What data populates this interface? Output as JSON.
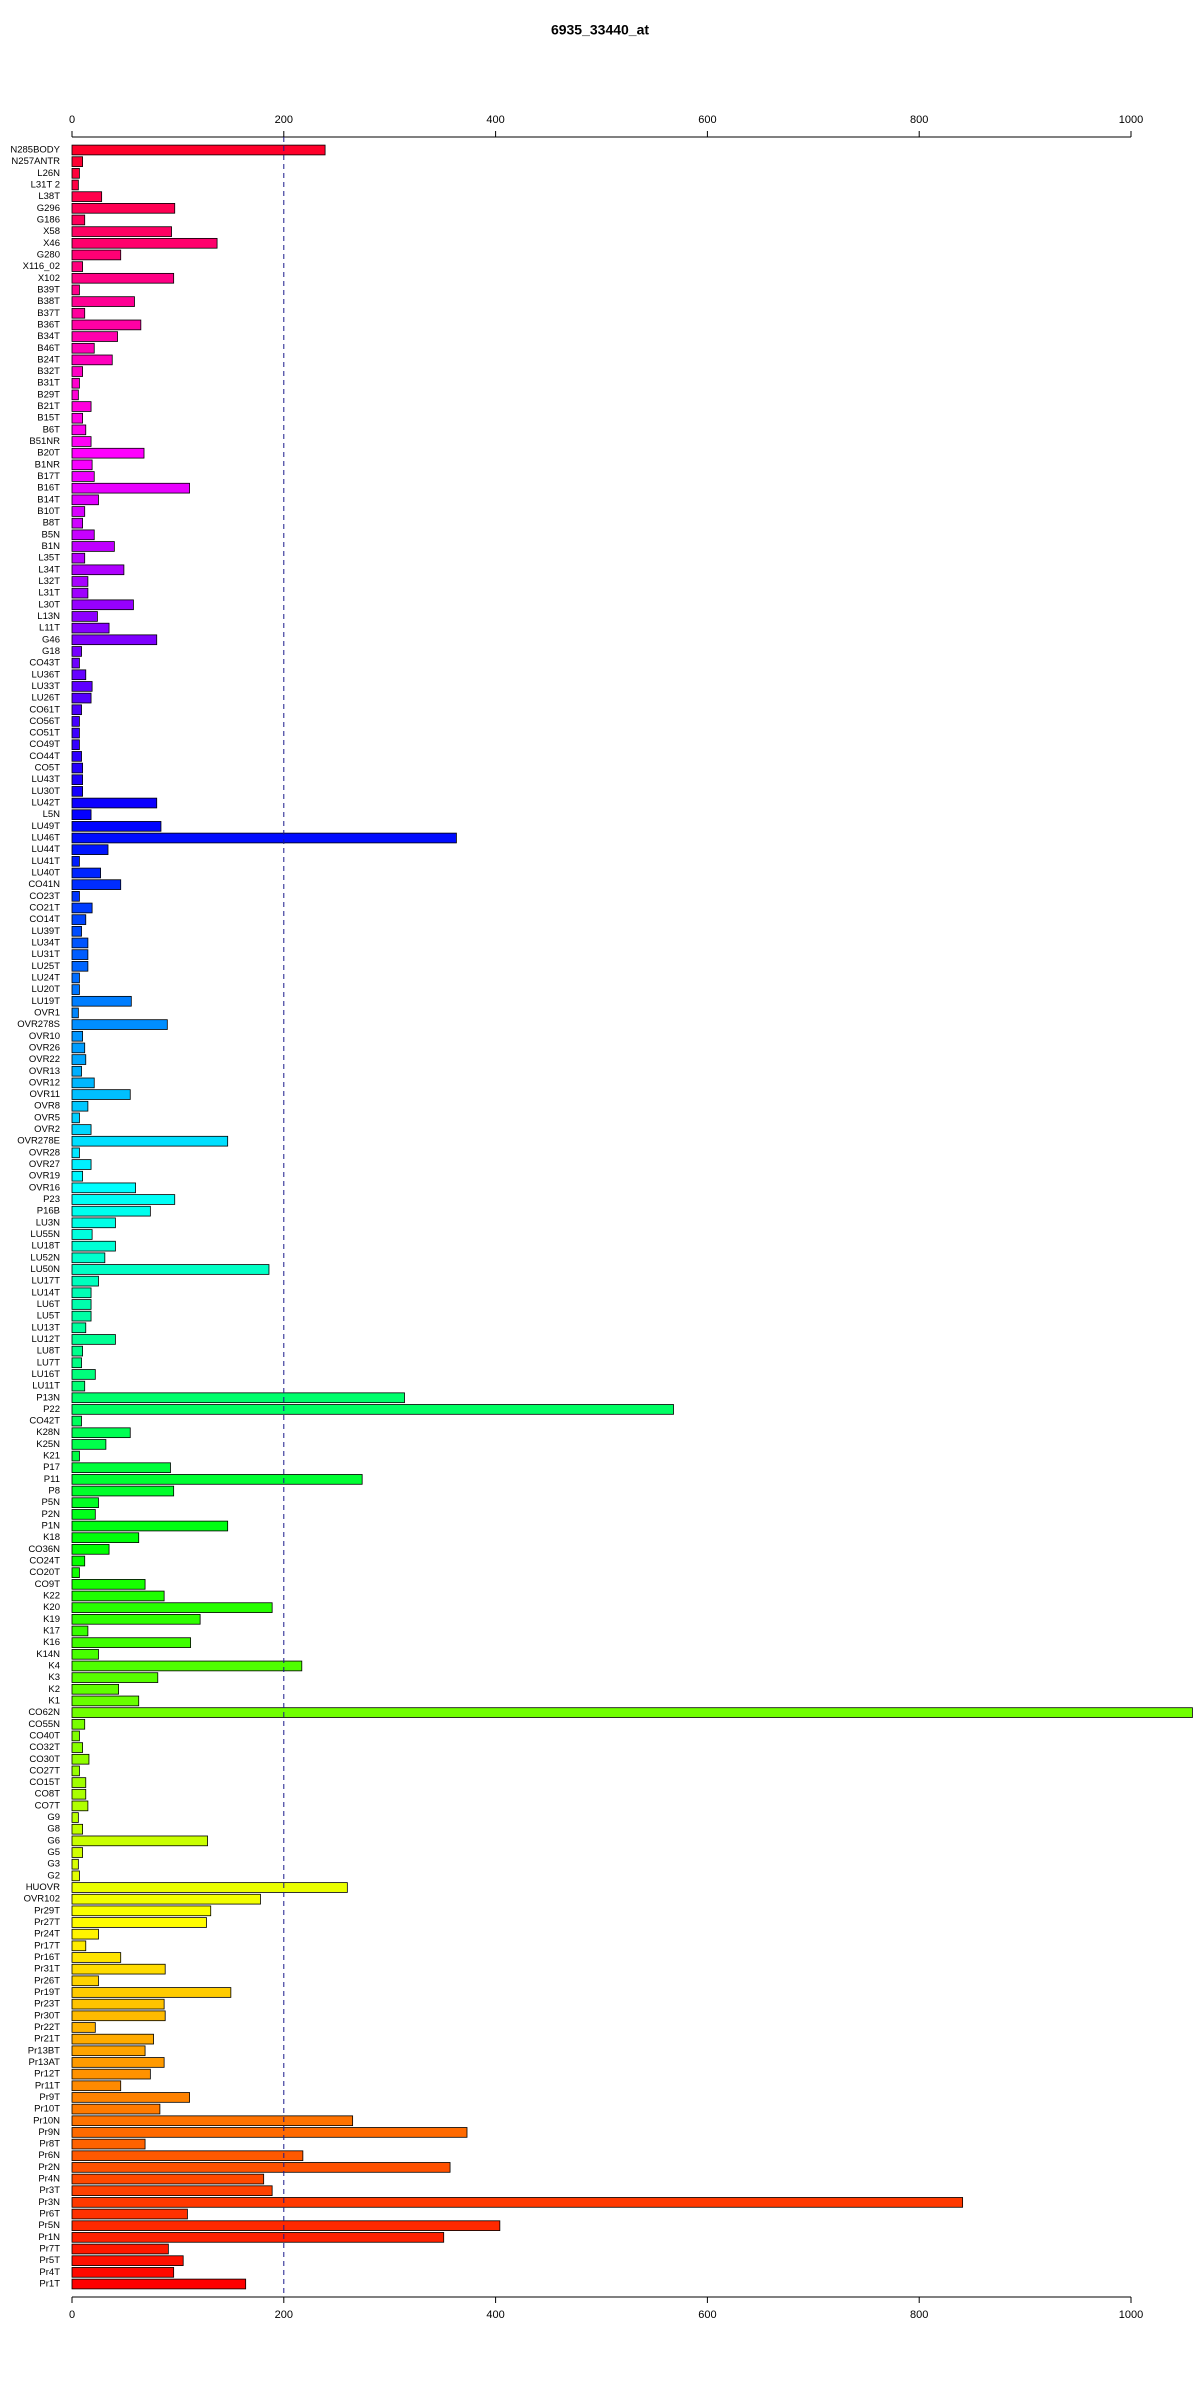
{
  "chart_data": {
    "type": "barh",
    "title": "6935_33440_at",
    "categories": [
      "N285BODY",
      "N257ANTR",
      "L26N",
      "L31T 2",
      "L38T",
      "G296",
      "G186",
      "X58",
      "X46",
      "G280",
      "X116_02",
      "X102",
      "B39T",
      "B38T",
      "B37T",
      "B36T",
      "B34T",
      "B46T",
      "B24T",
      "B32T",
      "B31T",
      "B29T",
      "B21T",
      "B15T",
      "B6T",
      "B51NR",
      "B20T",
      "B1NR",
      "B17T",
      "B16T",
      "B14T",
      "B10T",
      "B8T",
      "B5N",
      "B1N",
      "L35T",
      "L34T",
      "L32T",
      "L31T",
      "L30T",
      "L13N",
      "L11T",
      "G46",
      "G18",
      "CO43T",
      "LU36T",
      "LU33T",
      "LU26T",
      "CO61T",
      "CO56T",
      "CO51T",
      "CO49T",
      "CO44T",
      "CO5T",
      "LU43T",
      "LU30T",
      "LU42T",
      "L5N",
      "LU49T",
      "LU46T",
      "LU44T",
      "LU41T",
      "LU40T",
      "CO41N",
      "CO23T",
      "CO21T",
      "CO14T",
      "LU39T",
      "LU34T",
      "LU31T",
      "LU25T",
      "LU24T",
      "LU20T",
      "LU19T",
      "OVR1",
      "OVR278S",
      "OVR10",
      "OVR26",
      "OVR22",
      "OVR13",
      "OVR12",
      "OVR11",
      "OVR8",
      "OVR5",
      "OVR2",
      "OVR278E",
      "OVR28",
      "OVR27",
      "OVR19",
      "OVR16",
      "P23",
      "P16B",
      "LU3N",
      "LU55N",
      "LU18T",
      "LU52N",
      "LU50N",
      "LU17T",
      "LU14T",
      "LU6T",
      "LU5T",
      "LU13T",
      "LU12T",
      "LU8T",
      "LU7T",
      "LU16T",
      "LU11T",
      "P13N",
      "P22",
      "CO42T",
      "K28N",
      "K25N",
      "K21",
      "P17",
      "P11",
      "P8",
      "P5N",
      "P2N",
      "P1N",
      "K18",
      "CO36N",
      "CO24T",
      "CO20T",
      "CO9T",
      "K22",
      "K20",
      "K19",
      "K17",
      "K16",
      "K14N",
      "K4",
      "K3",
      "K2",
      "K1",
      "CO62N",
      "CO55N",
      "CO40T",
      "CO32T",
      "CO30T",
      "CO27T",
      "CO15T",
      "CO8T",
      "CO7T",
      "G9",
      "G8",
      "G6",
      "G5",
      "G3",
      "G2",
      "HUOVR",
      "OVR102",
      "Pr29T",
      "Pr27T",
      "Pr24T",
      "Pr17T",
      "Pr16T",
      "Pr31T",
      "Pr26T",
      "Pr19T",
      "Pr23T",
      "Pr30T",
      "Pr22T",
      "Pr21T",
      "Pr13BT",
      "Pr13AT",
      "Pr12T",
      "Pr11T",
      "Pr9T",
      "Pr10T",
      "Pr10N",
      "Pr9N",
      "Pr8T",
      "Pr6N",
      "Pr2N",
      "Pr4N",
      "Pr3T",
      "Pr3N",
      "Pr6T",
      "Pr5N",
      "Pr1N",
      "Pr7T",
      "Pr5T",
      "Pr4T",
      "Pr1T"
    ],
    "values": [
      239,
      10,
      7,
      6,
      28,
      97,
      12,
      94,
      137,
      46,
      10,
      96,
      7,
      59,
      12,
      65,
      43,
      21,
      38,
      10,
      7,
      6,
      18,
      10,
      13,
      18,
      68,
      19,
      21,
      111,
      25,
      12,
      10,
      21,
      40,
      12,
      49,
      15,
      15,
      58,
      24,
      35,
      80,
      9,
      7,
      13,
      19,
      18,
      9,
      7,
      7,
      7,
      9,
      10,
      10,
      10,
      80,
      18,
      84,
      363,
      34,
      7,
      27,
      46,
      7,
      19,
      13,
      9,
      15,
      15,
      15,
      7,
      7,
      56,
      6,
      90,
      10,
      12,
      13,
      9,
      21,
      55,
      15,
      7,
      18,
      147,
      7,
      18,
      10,
      60,
      97,
      74,
      41,
      19,
      41,
      31,
      186,
      25,
      18,
      18,
      18,
      13,
      41,
      10,
      9,
      22,
      12,
      314,
      568,
      9,
      55,
      32,
      7,
      93,
      274,
      96,
      25,
      22,
      147,
      63,
      35,
      12,
      7,
      69,
      87,
      189,
      121,
      15,
      112,
      25,
      217,
      81,
      44,
      63,
      1058,
      12,
      7,
      10,
      16,
      7,
      13,
      13,
      15,
      6,
      10,
      128,
      10,
      6,
      7,
      260,
      178,
      131,
      127,
      25,
      13,
      46,
      88,
      25,
      150,
      87,
      88,
      22,
      77,
      69,
      87,
      74,
      46,
      111,
      83,
      265,
      373,
      69,
      218,
      357,
      181,
      189,
      841,
      109,
      404,
      351,
      91,
      105,
      96,
      164
    ],
    "color_scheme": "rainbow",
    "xlim": [
      0,
      1000
    ],
    "xticks": [
      0,
      200,
      400,
      600,
      800,
      1000
    ],
    "refline": 200
  }
}
